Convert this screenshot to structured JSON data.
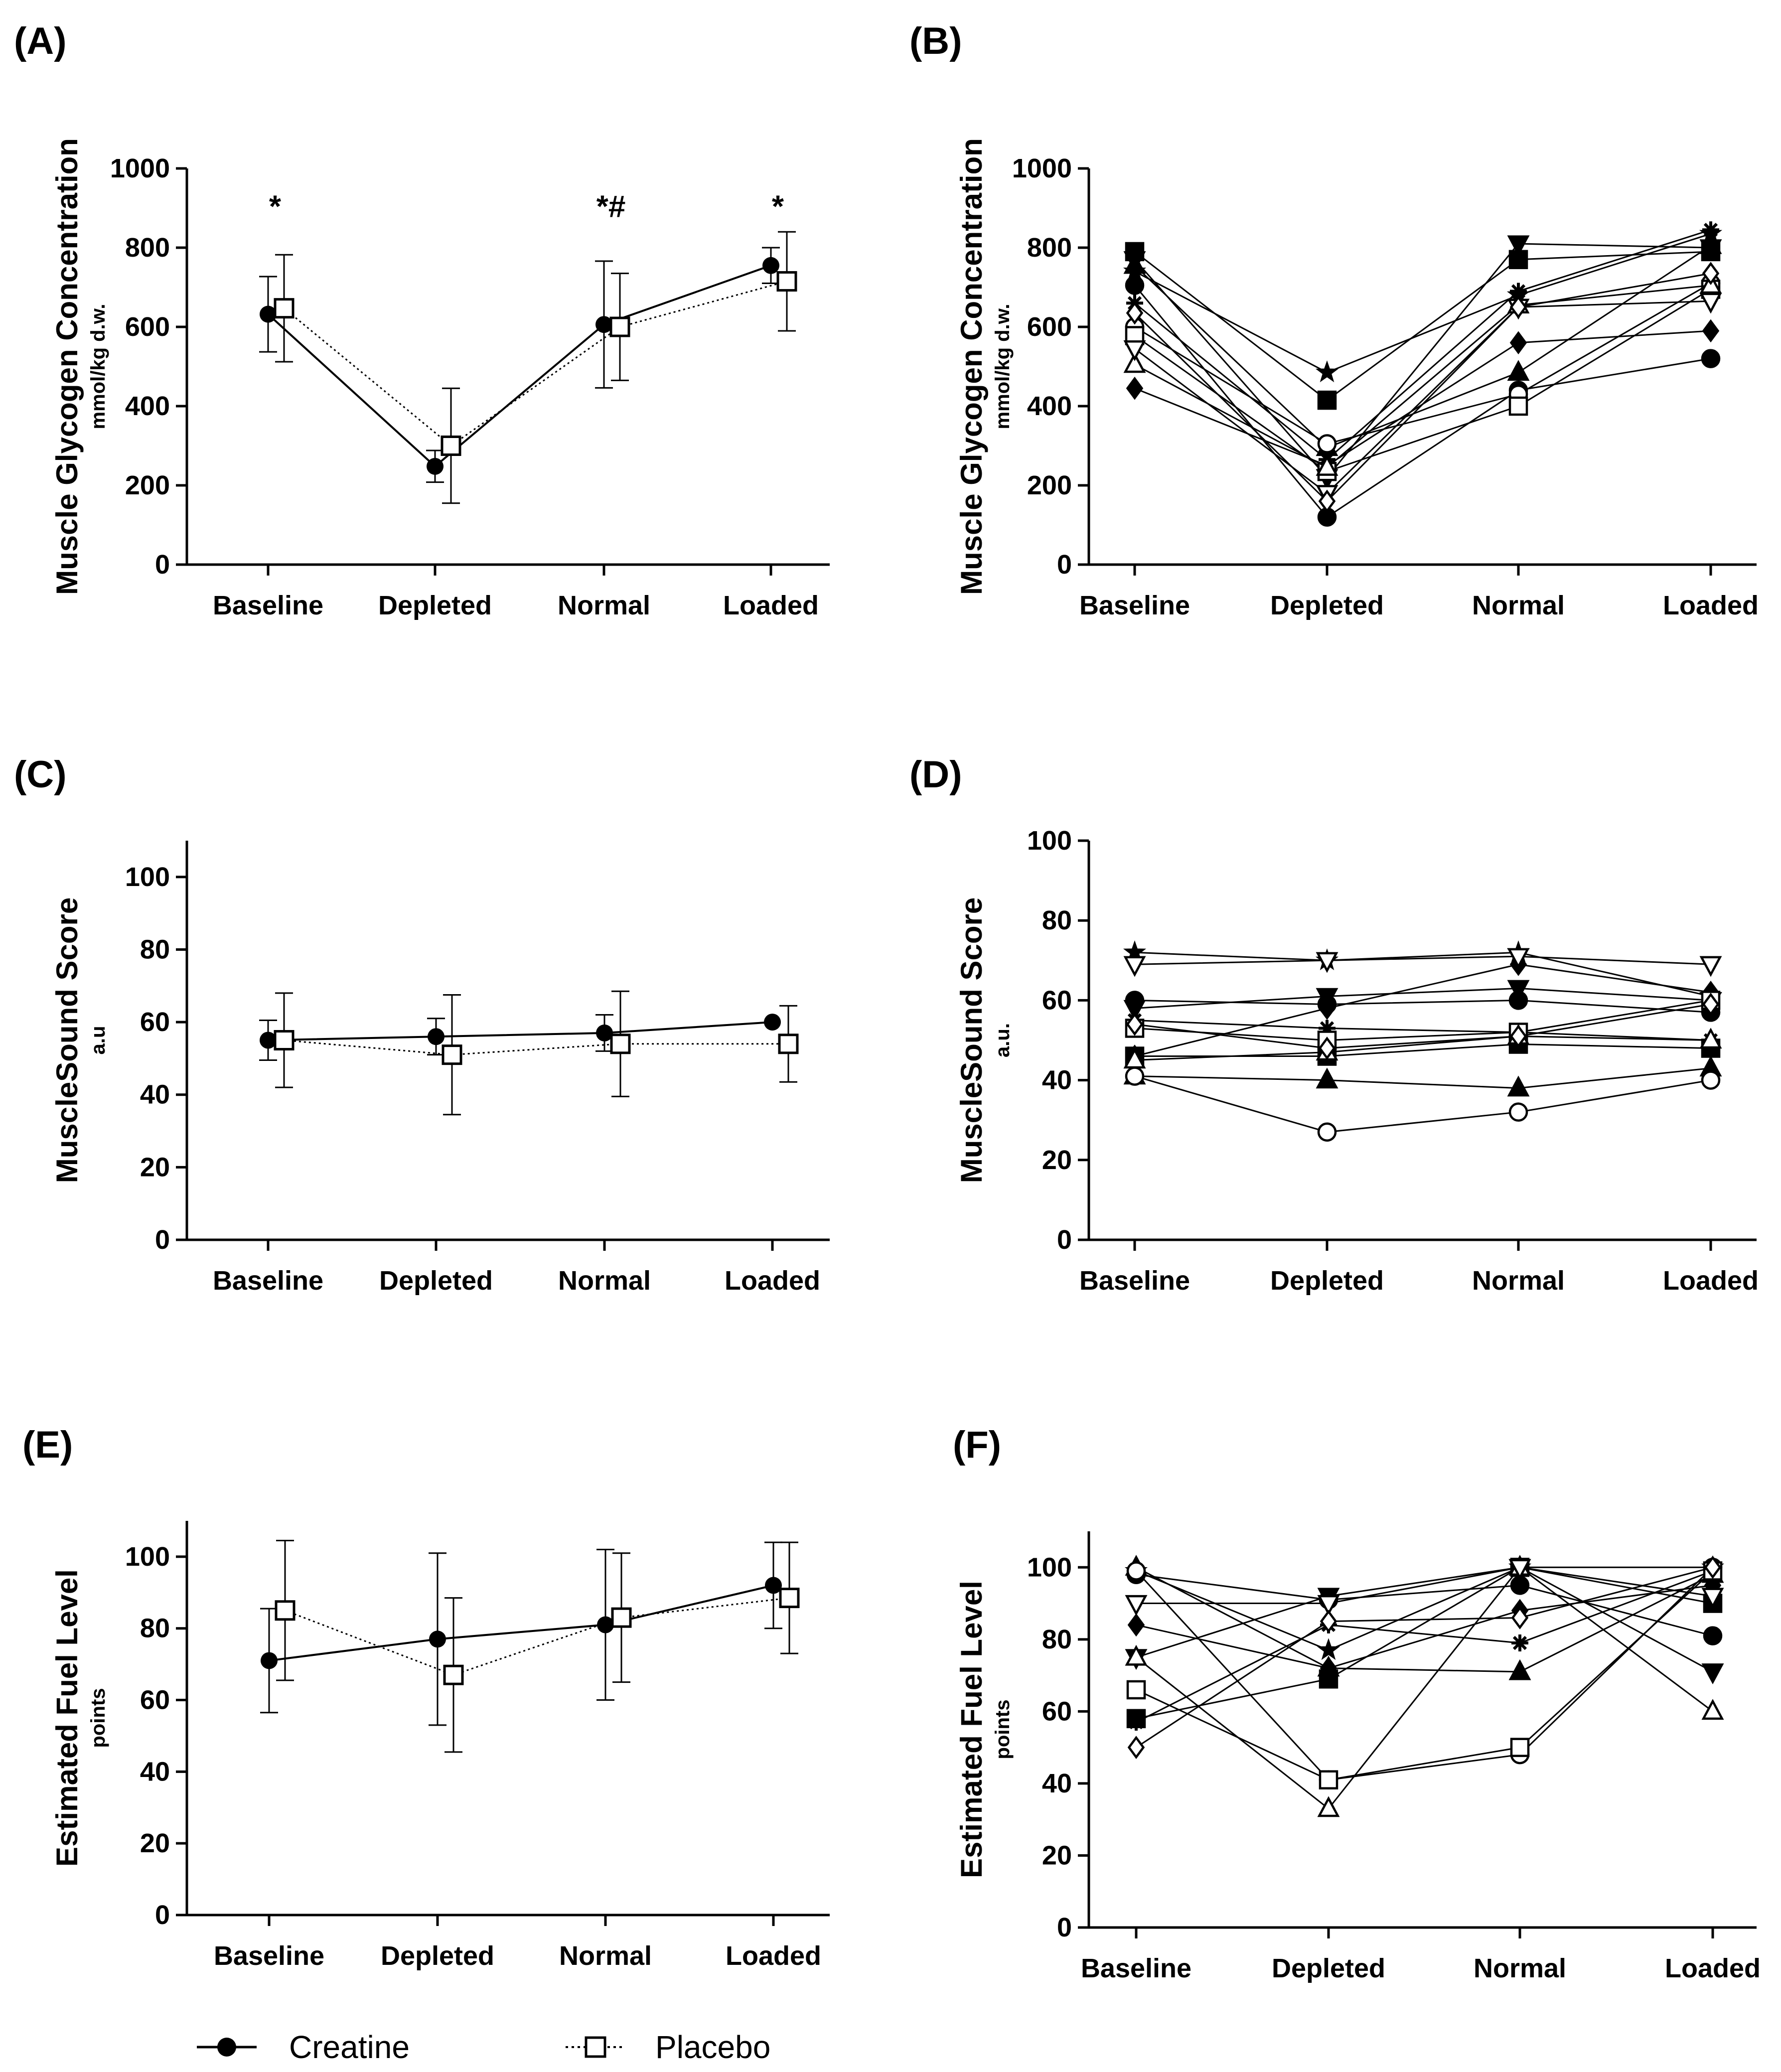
{
  "figure": {
    "legend": [
      {
        "name": "Creatine",
        "style": "solid",
        "marker": "circle-filled"
      },
      {
        "name": "Placebo",
        "style": "dotted",
        "marker": "square-open"
      }
    ]
  },
  "chart_data": [
    {
      "panel": "(A)",
      "type": "line",
      "mode": "mean",
      "ylabel": "Muscle Glycogen Concentration",
      "yunit": "mmol/kg d.w.",
      "categories": [
        "Baseline",
        "Depleted",
        "Normal",
        "Loaded"
      ],
      "ylim": [
        0,
        1000
      ],
      "yticks": [
        0,
        200,
        400,
        600,
        800,
        1000
      ],
      "series": [
        {
          "name": "Creatine",
          "values": [
            632,
            248,
            606,
            755
          ],
          "sd": [
            95,
            40,
            160,
            45
          ]
        },
        {
          "name": "Placebo",
          "values": [
            647,
            300,
            600,
            715
          ],
          "sd": [
            135,
            145,
            135,
            125
          ]
        }
      ],
      "annotations": [
        {
          "category": "Baseline",
          "text": "*",
          "y": 930
        },
        {
          "category": "Normal",
          "text": "*#",
          "y": 930
        },
        {
          "category": "Loaded",
          "text": "*",
          "y": 930
        }
      ]
    },
    {
      "panel": "(B)",
      "type": "line",
      "mode": "individual",
      "ylabel": "Muscle Glycogen Concentration",
      "yunit": "mmol/kg d.w.",
      "categories": [
        "Baseline",
        "Depleted",
        "Normal",
        "Loaded"
      ],
      "ylim": [
        0,
        1000
      ],
      "yticks": [
        0,
        200,
        400,
        600,
        800,
        1000
      ],
      "series": [
        {
          "name": "s1",
          "marker": "circle-filled",
          "values": [
            705,
            120,
            440,
            520
          ]
        },
        {
          "name": "s2",
          "marker": "square-filled",
          "values": [
            790,
            415,
            770,
            790
          ]
        },
        {
          "name": "s3",
          "marker": "triangle-filled",
          "values": [
            755,
            295,
            485,
            805
          ]
        },
        {
          "name": "s4",
          "marker": "tri-down-filled",
          "values": [
            770,
            220,
            810,
            800
          ]
        },
        {
          "name": "s5",
          "marker": "diamond-filled",
          "values": [
            445,
            250,
            560,
            590
          ]
        },
        {
          "name": "s6",
          "marker": "star",
          "values": [
            740,
            485,
            680,
            835
          ]
        },
        {
          "name": "s7",
          "marker": "asterisk",
          "values": [
            660,
            265,
            690,
            845
          ]
        },
        {
          "name": "s8",
          "marker": "circle-open",
          "values": [
            600,
            305,
            430,
            710
          ]
        },
        {
          "name": "s9",
          "marker": "square-open",
          "values": [
            578,
            235,
            400,
            695
          ]
        },
        {
          "name": "s10",
          "marker": "triangle-open",
          "values": [
            505,
            245,
            655,
            705
          ]
        },
        {
          "name": "s11",
          "marker": "tri-down-open",
          "values": [
            545,
            180,
            650,
            665
          ]
        },
        {
          "name": "s12",
          "marker": "diamond-open",
          "values": [
            635,
            160,
            650,
            735
          ]
        }
      ]
    },
    {
      "panel": "(C)",
      "type": "line",
      "mode": "mean",
      "ylabel": "MuscleSound Score",
      "yunit": "a.u",
      "categories": [
        "Baseline",
        "Depleted",
        "Normal",
        "Loaded"
      ],
      "ylim": [
        0,
        110
      ],
      "yticks": [
        0,
        20,
        40,
        60,
        80,
        100
      ],
      "series": [
        {
          "name": "Creatine",
          "values": [
            55,
            56,
            57,
            60
          ],
          "sd": [
            5.5,
            5,
            5,
            0
          ]
        },
        {
          "name": "Placebo",
          "values": [
            55,
            51,
            54,
            54
          ],
          "sd": [
            13,
            16.5,
            14.5,
            10.5
          ]
        }
      ]
    },
    {
      "panel": "(D)",
      "type": "line",
      "mode": "individual",
      "ylabel": "MuscleSound Score",
      "yunit": "a.u.",
      "categories": [
        "Baseline",
        "Depleted",
        "Normal",
        "Loaded"
      ],
      "ylim": [
        0,
        100
      ],
      "yticks": [
        0,
        20,
        40,
        60,
        80,
        100
      ],
      "series": [
        {
          "name": "s1",
          "marker": "circle-filled",
          "values": [
            60,
            59,
            60,
            57
          ]
        },
        {
          "name": "s2",
          "marker": "square-filled",
          "values": [
            46,
            46,
            49,
            48
          ]
        },
        {
          "name": "s3",
          "marker": "triangle-filled",
          "values": [
            41,
            40,
            38,
            43
          ]
        },
        {
          "name": "s4",
          "marker": "tri-down-filled",
          "values": [
            58,
            61,
            63,
            60
          ]
        },
        {
          "name": "s5",
          "marker": "diamond-filled",
          "values": [
            46,
            58,
            69,
            62
          ]
        },
        {
          "name": "s6",
          "marker": "star",
          "values": [
            72,
            70,
            72,
            61
          ]
        },
        {
          "name": "s7",
          "marker": "asterisk",
          "values": [
            55,
            53,
            52,
            50
          ]
        },
        {
          "name": "s8",
          "marker": "circle-open",
          "values": [
            41,
            27,
            32,
            40
          ]
        },
        {
          "name": "s9",
          "marker": "square-open",
          "values": [
            53,
            50,
            52,
            60
          ]
        },
        {
          "name": "s10",
          "marker": "triangle-open",
          "values": [
            45,
            47,
            51,
            50
          ]
        },
        {
          "name": "s11",
          "marker": "tri-down-open",
          "values": [
            69,
            70,
            71,
            69
          ]
        },
        {
          "name": "s12",
          "marker": "diamond-open",
          "values": [
            54,
            48,
            51,
            59
          ]
        }
      ]
    },
    {
      "panel": "(E)",
      "type": "line",
      "mode": "mean",
      "ylabel": "Estimated Fuel Level",
      "yunit": "points",
      "categories": [
        "Baseline",
        "Depleted",
        "Normal",
        "Loaded"
      ],
      "ylim": [
        0,
        110
      ],
      "yticks": [
        0,
        20,
        40,
        60,
        80,
        100
      ],
      "series": [
        {
          "name": "Creatine",
          "values": [
            71,
            77,
            81,
            92
          ],
          "sd": [
            14.5,
            24,
            21,
            12
          ]
        },
        {
          "name": "Placebo",
          "values": [
            85,
            67,
            83,
            88.5
          ],
          "sd": [
            19.5,
            21.5,
            18,
            15.5
          ]
        }
      ]
    },
    {
      "panel": "(F)",
      "type": "line",
      "mode": "individual",
      "ylabel": "Estimated Fuel Level",
      "yunit": "points",
      "categories": [
        "Baseline",
        "Depleted",
        "Normal",
        "Loaded"
      ],
      "ylim": [
        0,
        110
      ],
      "yticks": [
        0,
        20,
        40,
        60,
        80,
        100
      ],
      "series": [
        {
          "name": "s1",
          "marker": "circle-filled",
          "values": [
            98,
            91,
            95,
            81
          ]
        },
        {
          "name": "s2",
          "marker": "square-filled",
          "values": [
            58,
            69,
            100,
            90
          ]
        },
        {
          "name": "s3",
          "marker": "triangle-filled",
          "values": [
            100,
            72,
            71,
            98
          ]
        },
        {
          "name": "s4",
          "marker": "tri-down-filled",
          "values": [
            75,
            92,
            100,
            71
          ]
        },
        {
          "name": "s5",
          "marker": "diamond-filled",
          "values": [
            84,
            72,
            88,
            95
          ]
        },
        {
          "name": "s6",
          "marker": "star",
          "values": [
            99,
            77,
            100,
            100
          ]
        },
        {
          "name": "s7",
          "marker": "asterisk",
          "values": [
            57,
            84,
            79,
            99
          ]
        },
        {
          "name": "s8",
          "marker": "circle-open",
          "values": [
            99,
            41,
            48,
            100
          ]
        },
        {
          "name": "s9",
          "marker": "square-open",
          "values": [
            66,
            41,
            50,
            99
          ]
        },
        {
          "name": "s10",
          "marker": "triangle-open",
          "values": [
            75,
            33,
            100,
            60
          ]
        },
        {
          "name": "s11",
          "marker": "tri-down-open",
          "values": [
            90,
            90,
            100,
            92
          ]
        },
        {
          "name": "s12",
          "marker": "diamond-open",
          "values": [
            50,
            85,
            86,
            100
          ]
        }
      ]
    }
  ]
}
